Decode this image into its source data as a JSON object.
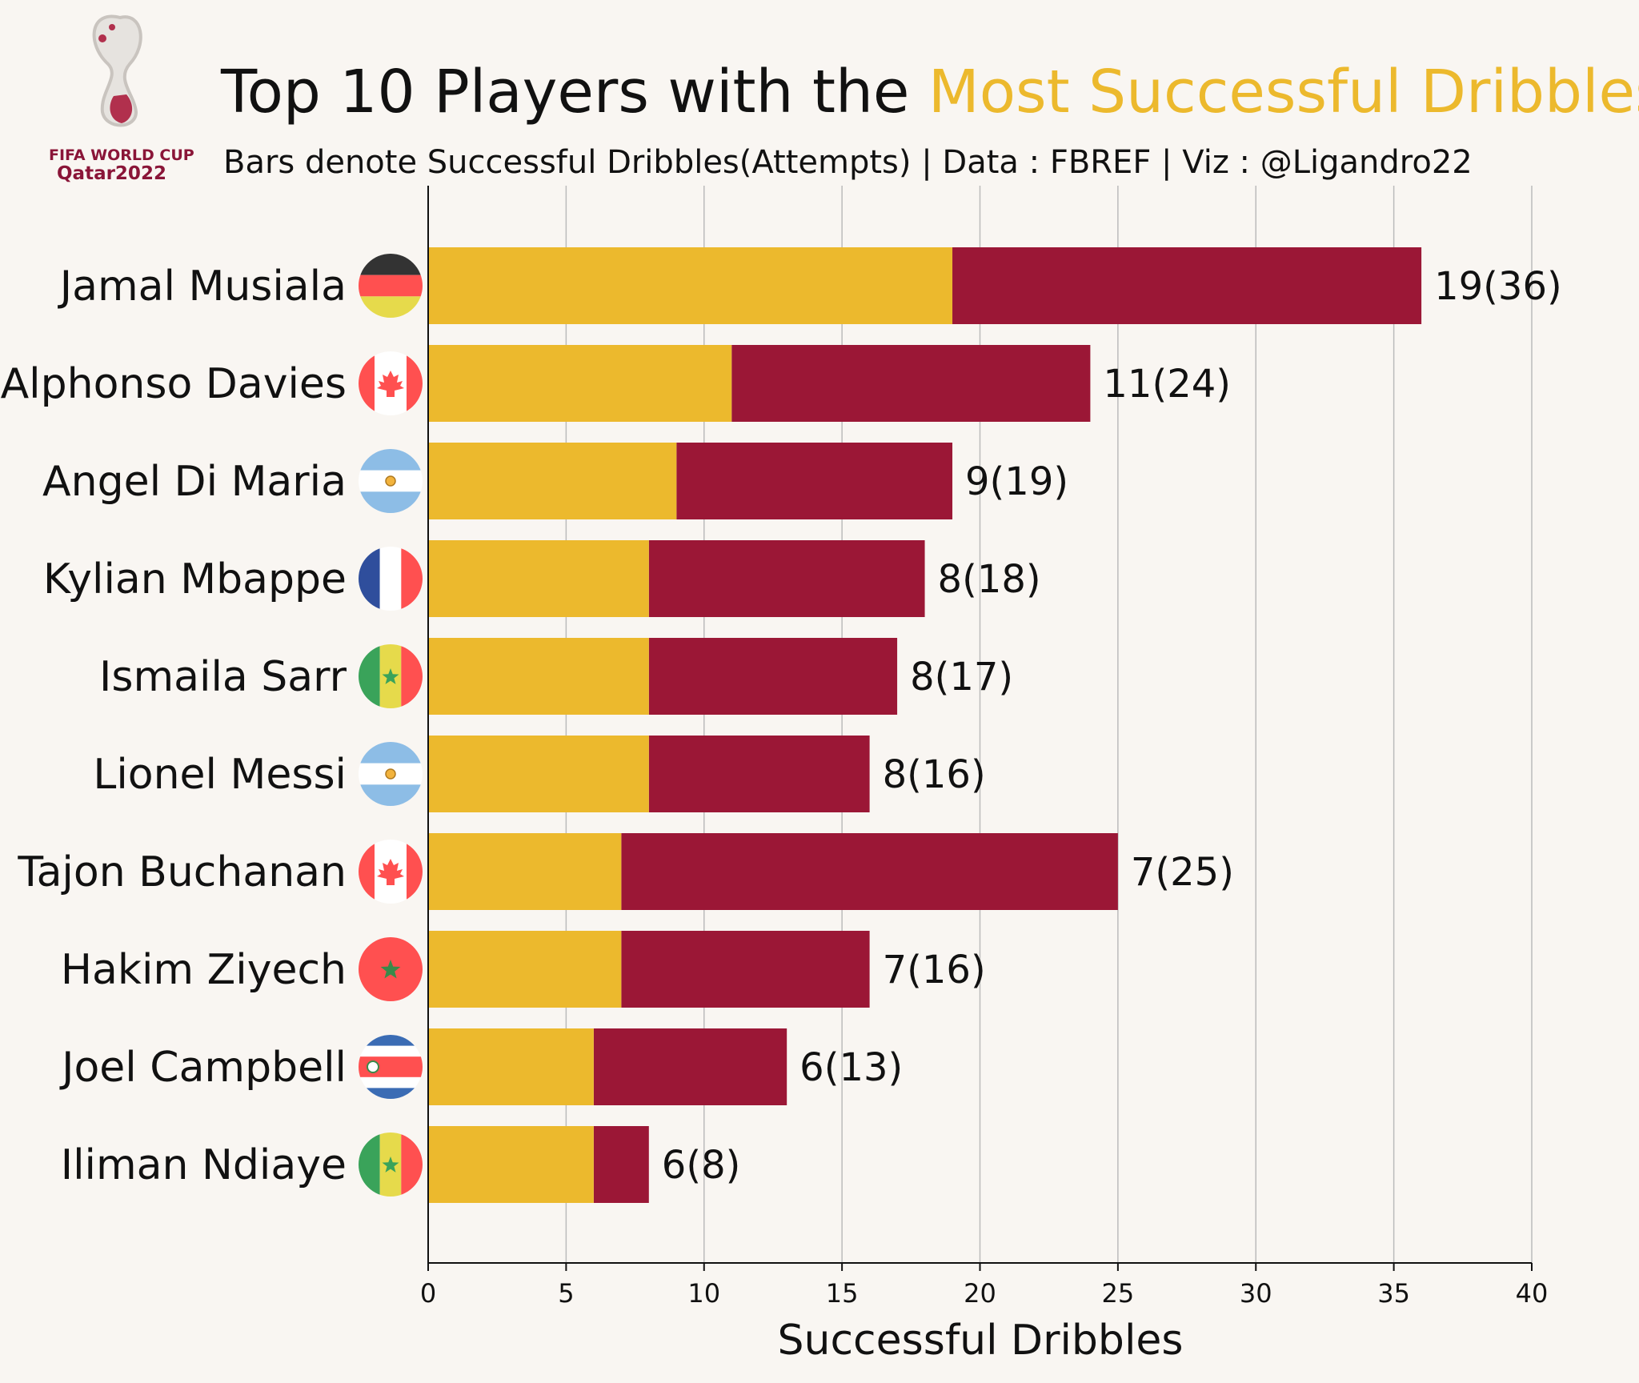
{
  "colors": {
    "background": "#f9f6f2",
    "successful": "#ecb92d",
    "attempts": "#9b1736",
    "title_highlight": "#ecb92d",
    "grid": "#bbbbbb",
    "text": "#111111"
  },
  "logo": {
    "line1": "FIFA WORLD CUP",
    "line2": "Qatar2022"
  },
  "title": {
    "prefix": "Top 10 Players with the ",
    "highlight": "Most Successful Dribbles"
  },
  "subtitle": "Bars denote Successful Dribbles(Attempts) | Data : FBREF | Viz : @Ligandro22",
  "chart_data": {
    "type": "bar",
    "orientation": "horizontal",
    "stacked": true,
    "categories": [
      "Jamal Musiala",
      "Alphonso Davies",
      "Angel Di Maria",
      "Kylian Mbappe",
      "Ismaila Sarr",
      "Lionel Messi",
      "Tajon Buchanan",
      "Hakim Ziyech",
      "Joel Campbell",
      "Iliman Ndiaye"
    ],
    "successful": [
      19,
      11,
      9,
      8,
      8,
      8,
      7,
      7,
      6,
      6
    ],
    "attempts": [
      36,
      24,
      19,
      18,
      17,
      16,
      25,
      16,
      13,
      8
    ],
    "value_labels": [
      "19(36)",
      "11(24)",
      "9(19)",
      "8(18)",
      "8(17)",
      "8(16)",
      "7(25)",
      "7(16)",
      "6(13)",
      "6(8)"
    ],
    "flags": [
      "germany-flag-icon",
      "canada-flag-icon",
      "argentina-flag-icon",
      "france-flag-icon",
      "senegal-flag-icon",
      "argentina-flag-icon",
      "canada-flag-icon",
      "morocco-flag-icon",
      "costa-rica-flag-icon",
      "senegal-flag-icon"
    ],
    "xlabel": "Successful Dribbles",
    "xlim": [
      0,
      40
    ],
    "xticks": [
      0,
      5,
      10,
      15,
      20,
      25,
      30,
      35,
      40
    ],
    "grid": "vertical"
  }
}
